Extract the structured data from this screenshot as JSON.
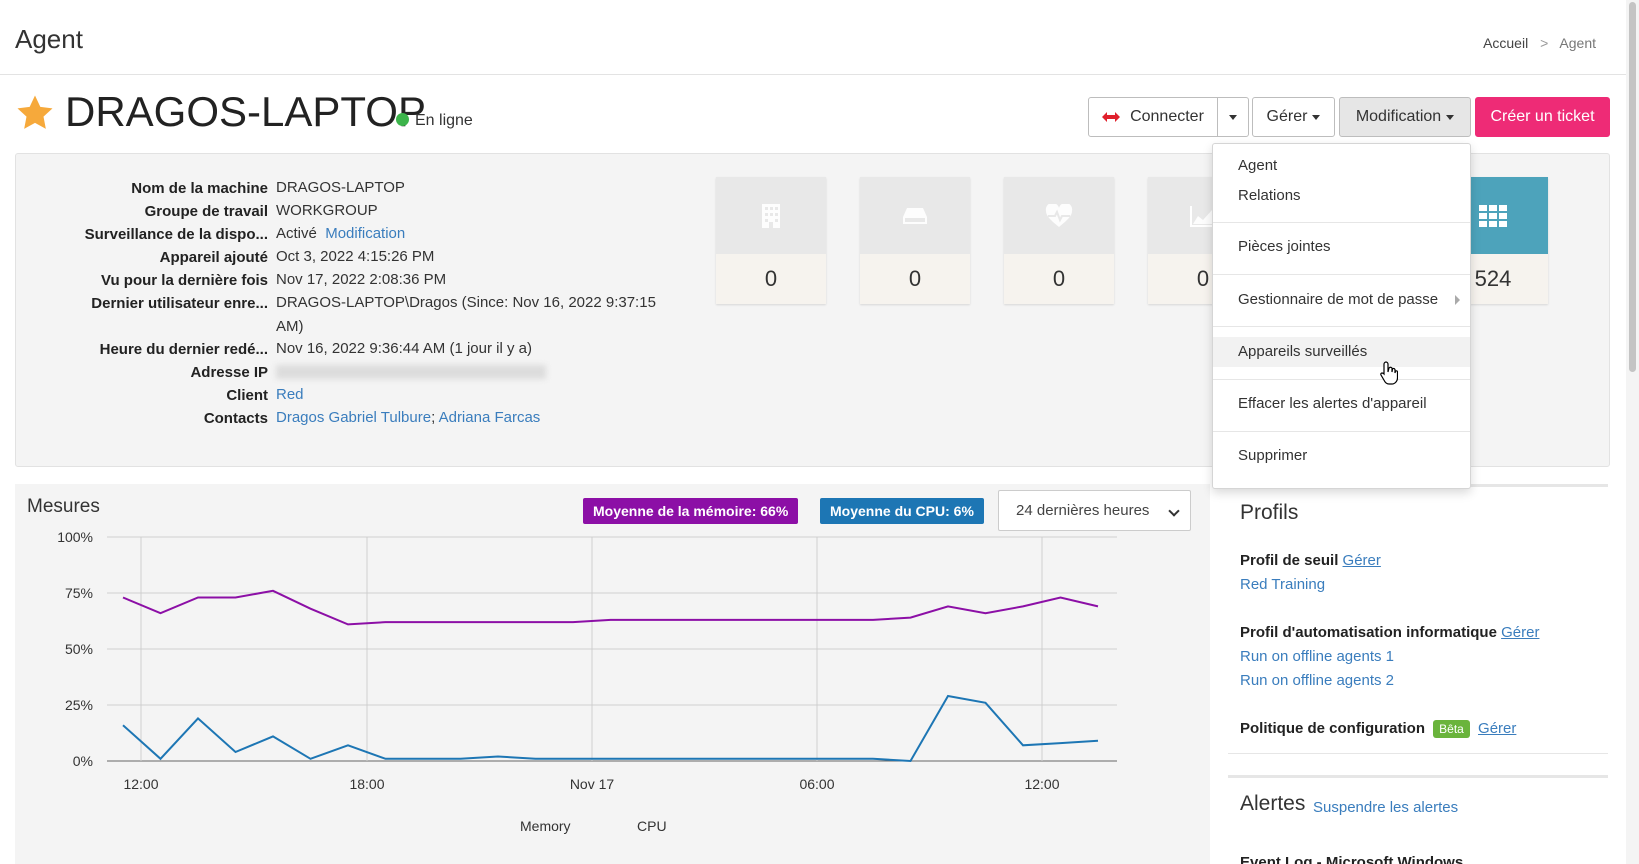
{
  "header": {
    "page_title": "Agent",
    "breadcrumb": {
      "home": "Accueil",
      "separator": ">",
      "current": "Agent"
    }
  },
  "device": {
    "name": "DRAGOS-LAPTOP",
    "status": "En ligne",
    "status_color": "#3cb44b",
    "favorite_icon": "star-icon"
  },
  "toolbar": {
    "connect_label": "Connecter",
    "manage_label": "Gérer",
    "modify_label": "Modification",
    "ticket_label": "Créer un ticket",
    "ticket_color": "#ee2b76"
  },
  "info": {
    "rows": [
      {
        "label": "Nom de la machine",
        "value": "DRAGOS-LAPTOP"
      },
      {
        "label": "Groupe de travail",
        "value": "WORKGROUP"
      },
      {
        "label": "Surveillance de la dispo...",
        "value": "Activé",
        "link": "Modification"
      },
      {
        "label": "Appareil ajouté",
        "value": "Oct 3, 2022 4:15:26 PM"
      },
      {
        "label": "Vu pour la dernière fois",
        "value": "Nov 17, 2022 2:08:36 PM"
      },
      {
        "label": "Dernier utilisateur enre...",
        "value": "DRAGOS-LAPTOP\\Dragos (Since: Nov 16, 2022 9:37:15 AM)"
      },
      {
        "label": "Heure du dernier redé...",
        "value": "Nov 16, 2022 9:36:44 AM (1 jour il y a)"
      },
      {
        "label": "Adresse IP",
        "value": ""
      },
      {
        "label": "Client",
        "link": "Red"
      },
      {
        "label": "Contacts",
        "link": "Dragos Gabriel Tulbure",
        "link2": "Adriana Farcas",
        "separator": ";"
      }
    ]
  },
  "tiles": [
    {
      "icon": "building-icon",
      "value": "0"
    },
    {
      "icon": "drive-icon",
      "value": "0"
    },
    {
      "icon": "heartbeat-icon",
      "value": "0"
    },
    {
      "icon": "area-chart-icon",
      "value": "0"
    },
    {
      "icon": "grid-icon",
      "value": "524"
    }
  ],
  "dropdown": {
    "items": [
      "Agent",
      "Relations",
      "Pièces jointes",
      "Gestionnaire de mot de passe",
      "Appareils surveillés",
      "Effacer les alertes d'appareil",
      "Supprimer"
    ]
  },
  "metrics": {
    "title": "Mesures",
    "memory_badge": "Moyenne de la mémoire: 66%",
    "cpu_badge": "Moyenne du CPU: 6%",
    "range_select": "24 dernières heures",
    "legend_memory": "Memory",
    "legend_cpu": "CPU"
  },
  "chart_data": {
    "type": "line",
    "x_ticks": [
      "12:00",
      "18:00",
      "Nov 17",
      "06:00",
      "12:00"
    ],
    "y_ticks": [
      "100%",
      "75%",
      "50%",
      "25%",
      "0%"
    ],
    "ylim": [
      0,
      100
    ],
    "grid": true,
    "series": [
      {
        "name": "Memory",
        "color": "#8c0fa6",
        "values": [
          73,
          66,
          73,
          73,
          76,
          68,
          61,
          62,
          62,
          62,
          62,
          62,
          62,
          63,
          63,
          63,
          63,
          63,
          63,
          63,
          63,
          64,
          69,
          66,
          69,
          73,
          69
        ]
      },
      {
        "name": "CPU",
        "color": "#1d76b4",
        "values": [
          16,
          1,
          19,
          4,
          11,
          1,
          7,
          1,
          1,
          1,
          2,
          1,
          1,
          1,
          1,
          1,
          1,
          1,
          1,
          1,
          1,
          0,
          29,
          26,
          7,
          8,
          9
        ]
      }
    ]
  },
  "profiles": {
    "title": "Profils",
    "threshold_label": "Profil de seuil",
    "threshold_manage": "Gérer",
    "threshold_value": "Red Training",
    "automation_label": "Profil d'automatisation informatique",
    "automation_manage": "Gérer",
    "automation_values": [
      "Run on offline agents 1",
      "Run on offline agents 2"
    ],
    "config_label": "Politique de configuration",
    "beta": "Bêta",
    "config_manage": "Gérer"
  },
  "alerts": {
    "title": "Alertes",
    "suspend_link": "Suspendre les alertes",
    "first_item": "Event Log - Microsoft Windows"
  }
}
